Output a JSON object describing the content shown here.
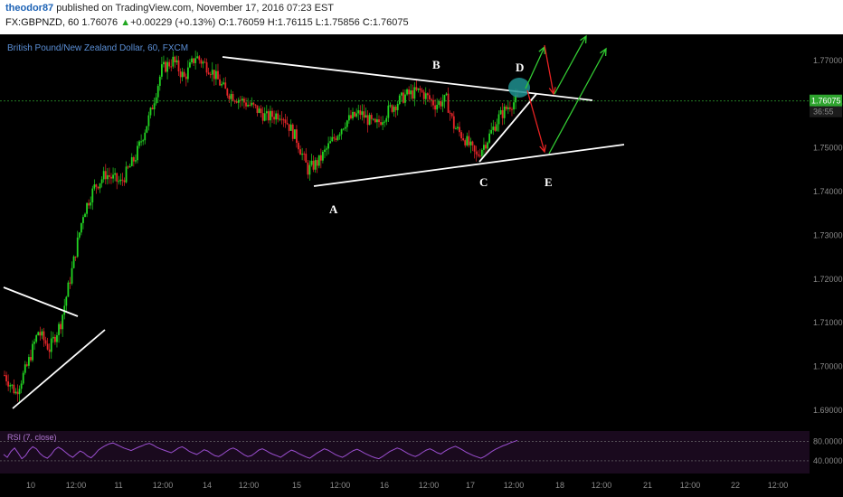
{
  "header": {
    "user": "theodor87",
    "published_text": "published on TradingView.com, November 17, 2016 07:23 EST",
    "symbol": "FX:GBPNZD, 60",
    "last": "1.76076",
    "change": "+0.00229 (+0.13%)",
    "o_label": "O:",
    "o_value": "1.76059",
    "h_label": "H:",
    "h_value": "1.76115",
    "l_label": "L:",
    "l_value": "1.75856",
    "c_label": "C:",
    "c_value": "1.76075"
  },
  "colors": {
    "up": "#22d422",
    "down": "#e8262a",
    "background": "#000000",
    "trendline": "#ffffff",
    "arrow_up": "#33cc33",
    "arrow_down": "#e62222",
    "highlight": "#1f8f8f",
    "rsi": "#9b4fd0",
    "price_line": "#2ea42e"
  },
  "chart_data": {
    "type": "candlestick",
    "title": "British Pound/New Zealand Dollar, 60, FXCM",
    "ylim": [
      1.685,
      1.776
    ],
    "y_ticks": [
      "1.77000",
      "1.76000",
      "1.75000",
      "1.74000",
      "1.73000",
      "1.72000",
      "1.71000",
      "1.70000",
      "1.69000"
    ],
    "x_ticks": [
      "10",
      "12:00",
      "11",
      "12:00",
      "14",
      "12:00",
      "15",
      "12:00",
      "16",
      "12:00",
      "17",
      "12:00",
      "18",
      "12:00",
      "21",
      "12:00",
      "22",
      "12:00"
    ],
    "current_price": "1.76075",
    "countdown": "36:55",
    "pattern_labels": [
      "A",
      "B",
      "C",
      "D",
      "E"
    ],
    "rsi": {
      "label": "RSI (7, close)",
      "levels": [
        "80.0000",
        "40.0000"
      ],
      "values": [
        45,
        38,
        52,
        60,
        48,
        35,
        42,
        55,
        63,
        58,
        47,
        40,
        36,
        44,
        56,
        62,
        57,
        50,
        43,
        38,
        46,
        53,
        49,
        41,
        37,
        45,
        55,
        61,
        66,
        70,
        72,
        68,
        64,
        60,
        57,
        54,
        58,
        62,
        65,
        69,
        71,
        67,
        62,
        58,
        55,
        52,
        49,
        54,
        60,
        63,
        58,
        52,
        48,
        45,
        50,
        56,
        53,
        47,
        42,
        40,
        45,
        51,
        57,
        60,
        56,
        50,
        44,
        40,
        42,
        48,
        55,
        58,
        54,
        49,
        45,
        42,
        38,
        44,
        50,
        55,
        52,
        47,
        43,
        39,
        36,
        42,
        48,
        53,
        58,
        55,
        50,
        45,
        41,
        38,
        43,
        49,
        54,
        57,
        53,
        48,
        44,
        40,
        37,
        35,
        40,
        46,
        52,
        56,
        60,
        57,
        52,
        47,
        43,
        40,
        44,
        50,
        55,
        58,
        54,
        49,
        46,
        52,
        57,
        61,
        64,
        60,
        55,
        50,
        46,
        42,
        39,
        36,
        40,
        46,
        52,
        57,
        61,
        65,
        68,
        72,
        75,
        78
      ]
    }
  }
}
